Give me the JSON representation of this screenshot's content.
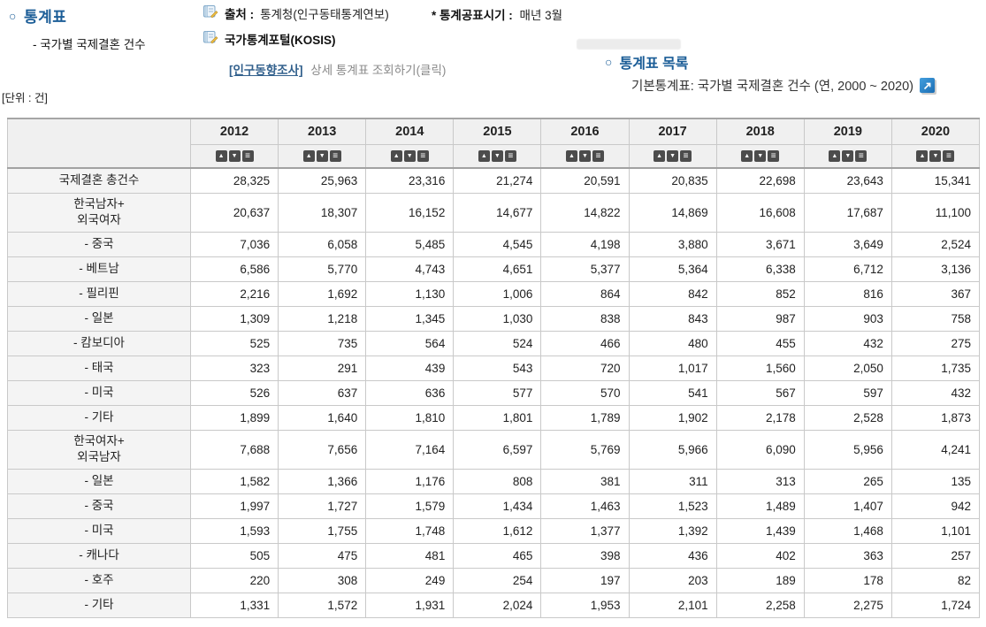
{
  "colors": {
    "accent_blue": "#1b5d97",
    "link_blue": "#33618d",
    "icon_blue": "#1a6cb2",
    "header_bg": "#f0f0f0",
    "label_bg": "#f4f4f4",
    "border": "#c9c9c9",
    "sort_button_bg": "#4c4c4c"
  },
  "icons": {
    "bullet": "○",
    "sort_asc": "▲",
    "sort_desc": "▼",
    "sort_menu": "≡",
    "document_icon": "document-with-pencil",
    "external_link_icon": "arrow-up-right"
  },
  "header": {
    "section_title": "통계표",
    "section_subtitle": "- 국가별 국제결혼 건수",
    "source_label": "출처 :",
    "source_value": "통계청(인구동태통계연보)",
    "kosis_label": "국가통계포털(KOSIS)",
    "survey_link_main": "[인구동향조사]",
    "survey_link_rest": "상세 통계표 조회하기(클릭)",
    "publish_label": "* 통계공표시기 :",
    "publish_value": "매년 3월",
    "list_title": "통계표 목록",
    "list_item": "기본통계표: 국가별 국제결혼 건수 (연, 2000 ~ 2020)",
    "unit": "[단위 : 건]"
  },
  "table": {
    "years": [
      "2012",
      "2013",
      "2014",
      "2015",
      "2016",
      "2017",
      "2018",
      "2019",
      "2020"
    ],
    "rows": [
      {
        "label": "국제결혼 총건수",
        "values": [
          "28,325",
          "25,963",
          "23,316",
          "21,274",
          "20,591",
          "20,835",
          "22,698",
          "23,643",
          "15,341"
        ]
      },
      {
        "label_lines": [
          "한국남자+",
          "외국여자"
        ],
        "values": [
          "20,637",
          "18,307",
          "16,152",
          "14,677",
          "14,822",
          "14,869",
          "16,608",
          "17,687",
          "11,100"
        ]
      },
      {
        "label": "- 중국",
        "values": [
          "7,036",
          "6,058",
          "5,485",
          "4,545",
          "4,198",
          "3,880",
          "3,671",
          "3,649",
          "2,524"
        ]
      },
      {
        "label": "- 베트남",
        "values": [
          "6,586",
          "5,770",
          "4,743",
          "4,651",
          "5,377",
          "5,364",
          "6,338",
          "6,712",
          "3,136"
        ]
      },
      {
        "label": "- 필리핀",
        "values": [
          "2,216",
          "1,692",
          "1,130",
          "1,006",
          "864",
          "842",
          "852",
          "816",
          "367"
        ]
      },
      {
        "label": "- 일본",
        "values": [
          "1,309",
          "1,218",
          "1,345",
          "1,030",
          "838",
          "843",
          "987",
          "903",
          "758"
        ]
      },
      {
        "label": "- 캄보디아",
        "values": [
          "525",
          "735",
          "564",
          "524",
          "466",
          "480",
          "455",
          "432",
          "275"
        ]
      },
      {
        "label": "- 태국",
        "values": [
          "323",
          "291",
          "439",
          "543",
          "720",
          "1,017",
          "1,560",
          "2,050",
          "1,735"
        ]
      },
      {
        "label": "- 미국",
        "values": [
          "526",
          "637",
          "636",
          "577",
          "570",
          "541",
          "567",
          "597",
          "432"
        ]
      },
      {
        "label": "- 기타",
        "values": [
          "1,899",
          "1,640",
          "1,810",
          "1,801",
          "1,789",
          "1,902",
          "2,178",
          "2,528",
          "1,873"
        ]
      },
      {
        "label_lines": [
          "한국여자+",
          "외국남자"
        ],
        "values": [
          "7,688",
          "7,656",
          "7,164",
          "6,597",
          "5,769",
          "5,966",
          "6,090",
          "5,956",
          "4,241"
        ]
      },
      {
        "label": "- 일본",
        "values": [
          "1,582",
          "1,366",
          "1,176",
          "808",
          "381",
          "311",
          "313",
          "265",
          "135"
        ]
      },
      {
        "label": "- 중국",
        "values": [
          "1,997",
          "1,727",
          "1,579",
          "1,434",
          "1,463",
          "1,523",
          "1,489",
          "1,407",
          "942"
        ]
      },
      {
        "label": "- 미국",
        "values": [
          "1,593",
          "1,755",
          "1,748",
          "1,612",
          "1,377",
          "1,392",
          "1,439",
          "1,468",
          "1,101"
        ]
      },
      {
        "label": "- 캐나다",
        "values": [
          "505",
          "475",
          "481",
          "465",
          "398",
          "436",
          "402",
          "363",
          "257"
        ]
      },
      {
        "label": "- 호주",
        "values": [
          "220",
          "308",
          "249",
          "254",
          "197",
          "203",
          "189",
          "178",
          "82"
        ]
      },
      {
        "label": "- 기타",
        "values": [
          "1,331",
          "1,572",
          "1,931",
          "2,024",
          "1,953",
          "2,101",
          "2,258",
          "2,275",
          "1,724"
        ]
      }
    ]
  }
}
